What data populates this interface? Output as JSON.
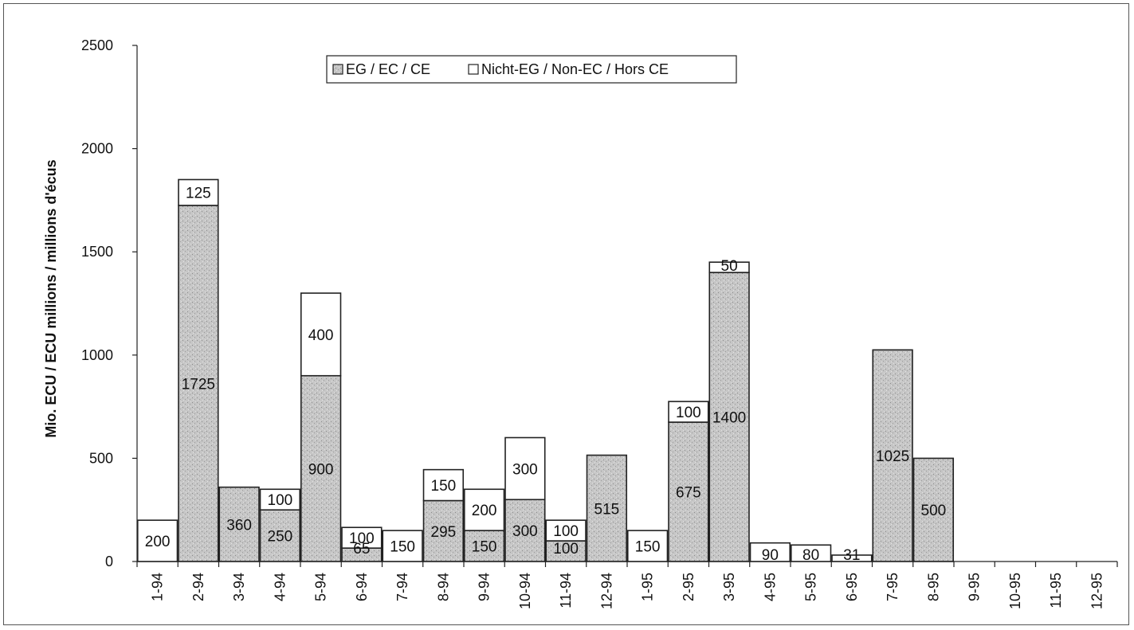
{
  "chart_data": {
    "type": "bar",
    "stacked": true,
    "ylabel": "Mio. ECU / ECU millions / millions d'écus",
    "ylim": [
      0,
      2500
    ],
    "yticks": [
      "0",
      "500",
      "1000",
      "1500",
      "2000",
      "2500"
    ],
    "categories": [
      "1-94",
      "2-94",
      "3-94",
      "4-94",
      "5-94",
      "6-94",
      "7-94",
      "8-94",
      "9-94",
      "10-94",
      "11-94",
      "12-94",
      "1-95",
      "2-95",
      "3-95",
      "4-95",
      "5-95",
      "6-95",
      "7-95",
      "8-95",
      "9-95",
      "10-95",
      "11-95",
      "12-95"
    ],
    "series": [
      {
        "name": "EG / EC / CE",
        "values": [
          0,
          1725,
          360,
          250,
          900,
          65,
          0,
          295,
          150,
          300,
          100,
          515,
          0,
          675,
          1400,
          0,
          0,
          0,
          1025,
          500,
          0,
          0,
          0,
          0
        ],
        "labels": [
          "",
          "1725",
          "360",
          "250",
          "900",
          "65",
          "",
          "295",
          "150",
          "300",
          "100",
          "515",
          "",
          "675",
          "1400",
          "",
          "",
          "",
          "1025",
          "500",
          "",
          "",
          "",
          ""
        ]
      },
      {
        "name": "Nicht-EG / Non-EC / Hors CE",
        "values": [
          200,
          125,
          0,
          100,
          400,
          100,
          150,
          150,
          200,
          300,
          100,
          0,
          150,
          100,
          50,
          90,
          80,
          31,
          0,
          0,
          0,
          0,
          0,
          0
        ],
        "labels": [
          "200",
          "125",
          "",
          "100",
          "400",
          "100",
          "150",
          "150",
          "200",
          "300",
          "100",
          "",
          "150",
          "100",
          "50",
          "90",
          "80",
          "31",
          "",
          "",
          "",
          "",
          "",
          ""
        ]
      }
    ],
    "legend_position": "top-center",
    "grid": false,
    "colors": {
      "ec": "#c9c9c9",
      "nonec": "#ffffff",
      "outline": "#222222"
    }
  }
}
